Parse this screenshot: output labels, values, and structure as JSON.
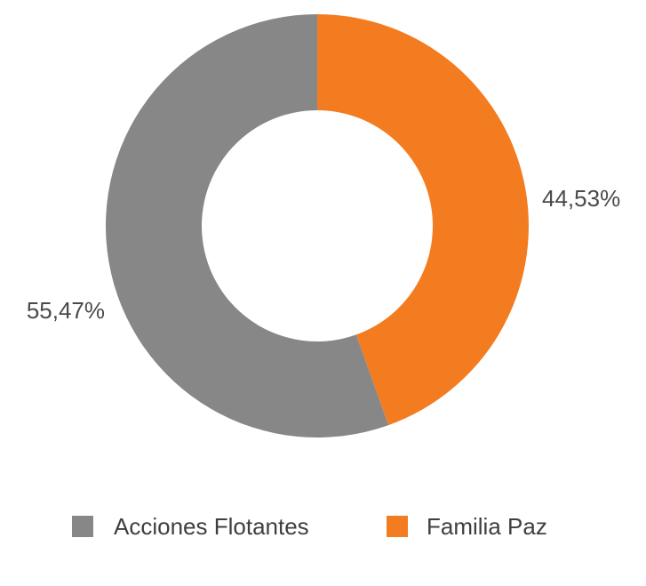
{
  "chart_data": {
    "type": "pie",
    "style": "donut",
    "title": "",
    "categories": [
      "Acciones Flotantes",
      "Familia Paz"
    ],
    "values": [
      55.47,
      44.53
    ],
    "data_labels": [
      "55,47%",
      "44,53%"
    ],
    "colors": [
      "#878787",
      "#f47c20"
    ],
    "start_angle": "top (12 o'clock)",
    "direction": "clockwise starting with Familia Paz",
    "legend": {
      "position": "bottom-center",
      "entries": [
        {
          "label": "Acciones Flotantes",
          "color": "#878787"
        },
        {
          "label": "Familia Paz",
          "color": "#f47c20"
        }
      ]
    }
  }
}
